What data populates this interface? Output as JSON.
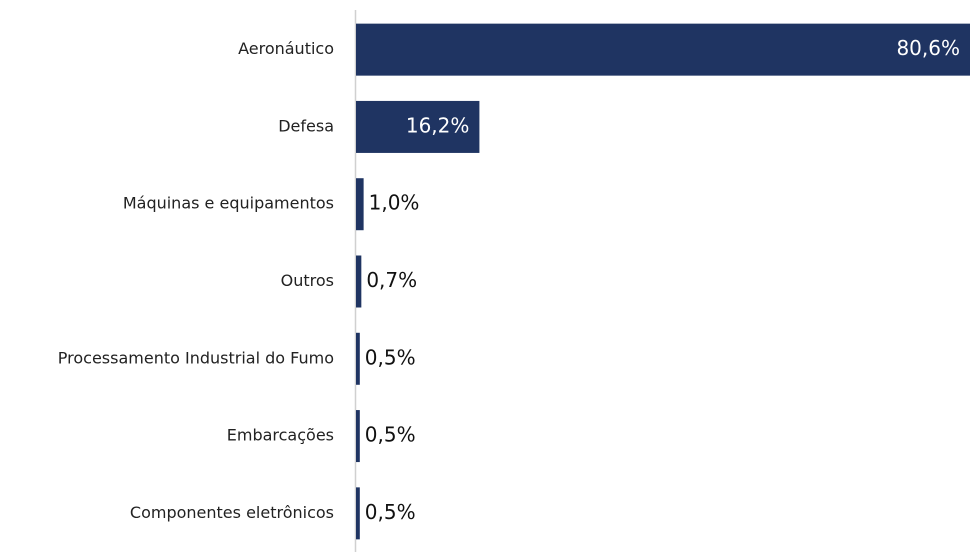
{
  "chart_data": {
    "type": "bar",
    "orientation": "horizontal",
    "categories": [
      "Aeronáutico",
      "Defesa",
      "Máquinas e equipamentos",
      "Outros",
      "Processamento Industrial do Fumo",
      "Embarcações",
      "Componentes eletrônicos"
    ],
    "values": [
      80.6,
      16.2,
      1.0,
      0.7,
      0.5,
      0.5,
      0.5
    ],
    "value_labels": [
      "80,6%",
      "16,2%",
      "1,0%",
      "0,7%",
      "0,5%",
      "0,5%",
      "0,5%"
    ],
    "color": "#1f3462"
  }
}
